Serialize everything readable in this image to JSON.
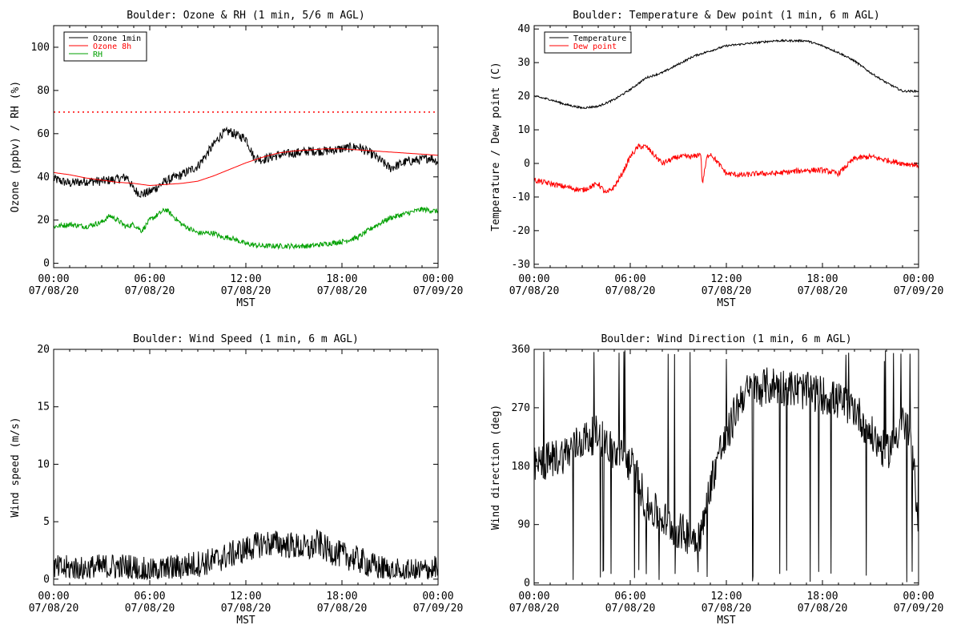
{
  "colors": {
    "black": "#000000",
    "red": "#ff0000",
    "green": "#00a000"
  },
  "chart_data": [
    {
      "id": "ozone",
      "type": "line",
      "title": "Boulder: Ozone & RH (1 min, 5/6 m AGL)",
      "xlabel": "MST",
      "ylabel": "Ozone (ppbv) / RH (%)",
      "xlim": [
        0,
        24
      ],
      "ylim": [
        -2,
        110
      ],
      "grid": false,
      "legend": "top-left",
      "x_ticks": [
        {
          "time": "00:00",
          "date": "07/08/20"
        },
        {
          "time": "06:00",
          "date": "07/08/20"
        },
        {
          "time": "12:00",
          "date": "07/08/20"
        },
        {
          "time": "18:00",
          "date": "07/08/20"
        },
        {
          "time": "00:00",
          "date": "07/09/20"
        }
      ],
      "y_ticks": [
        "0",
        "20",
        "40",
        "60",
        "80",
        "100"
      ],
      "y_tick_values": [
        0,
        20,
        40,
        60,
        80,
        100
      ],
      "reference_line": {
        "y": 70,
        "color": "#ff0000",
        "style": "dotted"
      },
      "series": [
        {
          "name": "Ozone 1min",
          "color": "#000000",
          "noise": 2.2,
          "x": [
            0,
            1,
            2,
            3,
            4,
            4.6,
            5,
            5.5,
            6,
            7,
            8,
            9,
            10,
            10.5,
            11,
            11.5,
            12,
            12.5,
            13,
            14,
            15,
            16,
            17,
            18,
            19,
            20,
            21,
            22,
            23,
            23.5,
            24
          ],
          "y": [
            39,
            37,
            38,
            38,
            39,
            40,
            34,
            32,
            33,
            38,
            41,
            45,
            55,
            60,
            61,
            59,
            58,
            49,
            48,
            50,
            51,
            52,
            52,
            53,
            54,
            50,
            44,
            47,
            48,
            49,
            47
          ]
        },
        {
          "name": "Ozone 8h",
          "color": "#ff0000",
          "noise": 0,
          "x": [
            0,
            1,
            2,
            3,
            4,
            5,
            6,
            7,
            8,
            9,
            10,
            11,
            12,
            13,
            14,
            15,
            16,
            17,
            18,
            19,
            20,
            21,
            22,
            23,
            24
          ],
          "y": [
            42,
            41,
            39.5,
            38.5,
            37.5,
            37,
            36,
            36.5,
            37,
            38,
            40.5,
            43.5,
            46.5,
            49,
            51,
            52,
            52.5,
            53,
            53,
            52.5,
            52,
            51.5,
            51,
            50.5,
            50
          ]
        },
        {
          "name": "RH",
          "color": "#00a000",
          "noise": 1.2,
          "x": [
            0,
            1,
            2,
            3,
            3.5,
            4,
            4.5,
            5,
            5.5,
            6,
            7,
            8,
            9,
            10,
            10.5,
            11,
            12,
            13,
            14,
            15,
            16,
            17,
            18,
            19,
            20,
            21,
            22,
            23,
            24
          ],
          "y": [
            17,
            18,
            17,
            19,
            22,
            20,
            17,
            18,
            15,
            20,
            25,
            18,
            14,
            14,
            12,
            12,
            9,
            8,
            8,
            8,
            8,
            9,
            10,
            12,
            17,
            21,
            23,
            25,
            24
          ]
        }
      ]
    },
    {
      "id": "temp",
      "type": "line",
      "title": "Boulder: Temperature & Dew point (1 min, 6 m AGL)",
      "xlabel": "MST",
      "ylabel": "Temperature / Dew point (C)",
      "xlim": [
        0,
        24
      ],
      "ylim": [
        -31,
        41
      ],
      "grid": false,
      "legend": "top-left",
      "x_ticks": [
        {
          "time": "00:00",
          "date": "07/08/20"
        },
        {
          "time": "06:00",
          "date": "07/08/20"
        },
        {
          "time": "12:00",
          "date": "07/08/20"
        },
        {
          "time": "18:00",
          "date": "07/08/20"
        },
        {
          "time": "00:00",
          "date": "07/09/20"
        }
      ],
      "y_ticks": [
        "-30",
        "-20",
        "-10",
        "0",
        "10",
        "20",
        "30",
        "40"
      ],
      "y_tick_values": [
        -30,
        -20,
        -10,
        0,
        10,
        20,
        30,
        40
      ],
      "series": [
        {
          "name": "Temperature",
          "color": "#000000",
          "noise": 0.3,
          "x": [
            0,
            1,
            2,
            3,
            4,
            5,
            6,
            7,
            8,
            9,
            10,
            11,
            12,
            13,
            14,
            15,
            16,
            17,
            18,
            19,
            20,
            21,
            22,
            23,
            24
          ],
          "y": [
            20,
            19,
            17.5,
            16.5,
            17,
            19,
            22,
            25.5,
            27,
            29.5,
            32,
            33.5,
            35,
            35.5,
            36,
            36.5,
            36.5,
            36.5,
            35,
            33,
            30.5,
            27,
            24,
            21.5,
            21.5
          ]
        },
        {
          "name": "Dew point",
          "color": "#ff0000",
          "noise": 0.8,
          "x": [
            0,
            1,
            2,
            3,
            4,
            4.5,
            5,
            5.5,
            6,
            6.5,
            7,
            8,
            9,
            10,
            10.4,
            10.5,
            10.8,
            11,
            12,
            13,
            14,
            15,
            16,
            17,
            18,
            19,
            20,
            21,
            22,
            23,
            24
          ],
          "y": [
            -5,
            -6,
            -7,
            -8,
            -6,
            -9,
            -7,
            -3,
            2,
            5,
            5,
            0,
            2,
            2,
            3,
            -6,
            2,
            3,
            -3,
            -3.5,
            -3,
            -3,
            -2.5,
            -2,
            -2,
            -3,
            1.5,
            2,
            1,
            0,
            -0.5
          ]
        }
      ]
    },
    {
      "id": "wspd",
      "type": "line",
      "title": "Boulder: Wind Speed (1 min, 6 m AGL)",
      "xlabel": "MST",
      "ylabel": "Wind speed (m/s)",
      "xlim": [
        0,
        24
      ],
      "ylim": [
        -0.5,
        20
      ],
      "grid": false,
      "x_ticks": [
        {
          "time": "00:00",
          "date": "07/08/20"
        },
        {
          "time": "06:00",
          "date": "07/08/20"
        },
        {
          "time": "12:00",
          "date": "07/08/20"
        },
        {
          "time": "18:00",
          "date": "07/08/20"
        },
        {
          "time": "00:00",
          "date": "07/09/20"
        }
      ],
      "y_ticks": [
        "0",
        "5",
        "10",
        "15",
        "20"
      ],
      "y_tick_values": [
        0,
        5,
        10,
        15,
        20
      ],
      "series": [
        {
          "color": "#000000",
          "noise": 1.2,
          "floor": 0,
          "x": [
            0,
            2,
            4,
            5,
            6,
            8,
            10,
            11,
            12,
            13,
            14,
            15,
            16,
            16.5,
            17,
            18,
            19,
            20,
            21,
            22,
            23,
            24
          ],
          "y": [
            0.9,
            0.9,
            1.1,
            1.0,
            0.6,
            1.1,
            1.6,
            2.1,
            2.6,
            3.1,
            3.1,
            2.9,
            2.6,
            3.2,
            2.6,
            2.1,
            1.7,
            1.1,
            0.7,
            0.5,
            0.7,
            0.9
          ]
        }
      ]
    },
    {
      "id": "wdir",
      "type": "line",
      "title": "Boulder: Wind Direction (1 min, 6 m AGL)",
      "xlabel": "MST",
      "ylabel": "Wind direction (deg)",
      "xlim": [
        0,
        24
      ],
      "ylim": [
        -3,
        360
      ],
      "grid": false,
      "x_ticks": [
        {
          "time": "00:00",
          "date": "07/08/20"
        },
        {
          "time": "06:00",
          "date": "07/08/20"
        },
        {
          "time": "12:00",
          "date": "07/08/20"
        },
        {
          "time": "18:00",
          "date": "07/08/20"
        },
        {
          "time": "00:00",
          "date": "07/09/20"
        }
      ],
      "y_ticks": [
        "0",
        "90",
        "180",
        "270",
        "360"
      ],
      "y_tick_values": [
        0,
        90,
        180,
        270,
        360
      ],
      "series": [
        {
          "color": "#000000",
          "noise": 30,
          "floor": 0,
          "ceil": 360,
          "spikes": true,
          "x": [
            0,
            1,
            2,
            3,
            4,
            5,
            6,
            6.5,
            7,
            8,
            9,
            10,
            10.5,
            11,
            11.5,
            12,
            12.5,
            13,
            14,
            15,
            16,
            17,
            18,
            19,
            20,
            21,
            22,
            23,
            23.5,
            24
          ],
          "y": [
            180,
            190,
            200,
            220,
            230,
            200,
            185,
            160,
            120,
            100,
            80,
            70,
            80,
            150,
            200,
            220,
            260,
            290,
            300,
            305,
            300,
            295,
            290,
            280,
            270,
            230,
            200,
            250,
            220,
            100
          ]
        }
      ]
    }
  ]
}
